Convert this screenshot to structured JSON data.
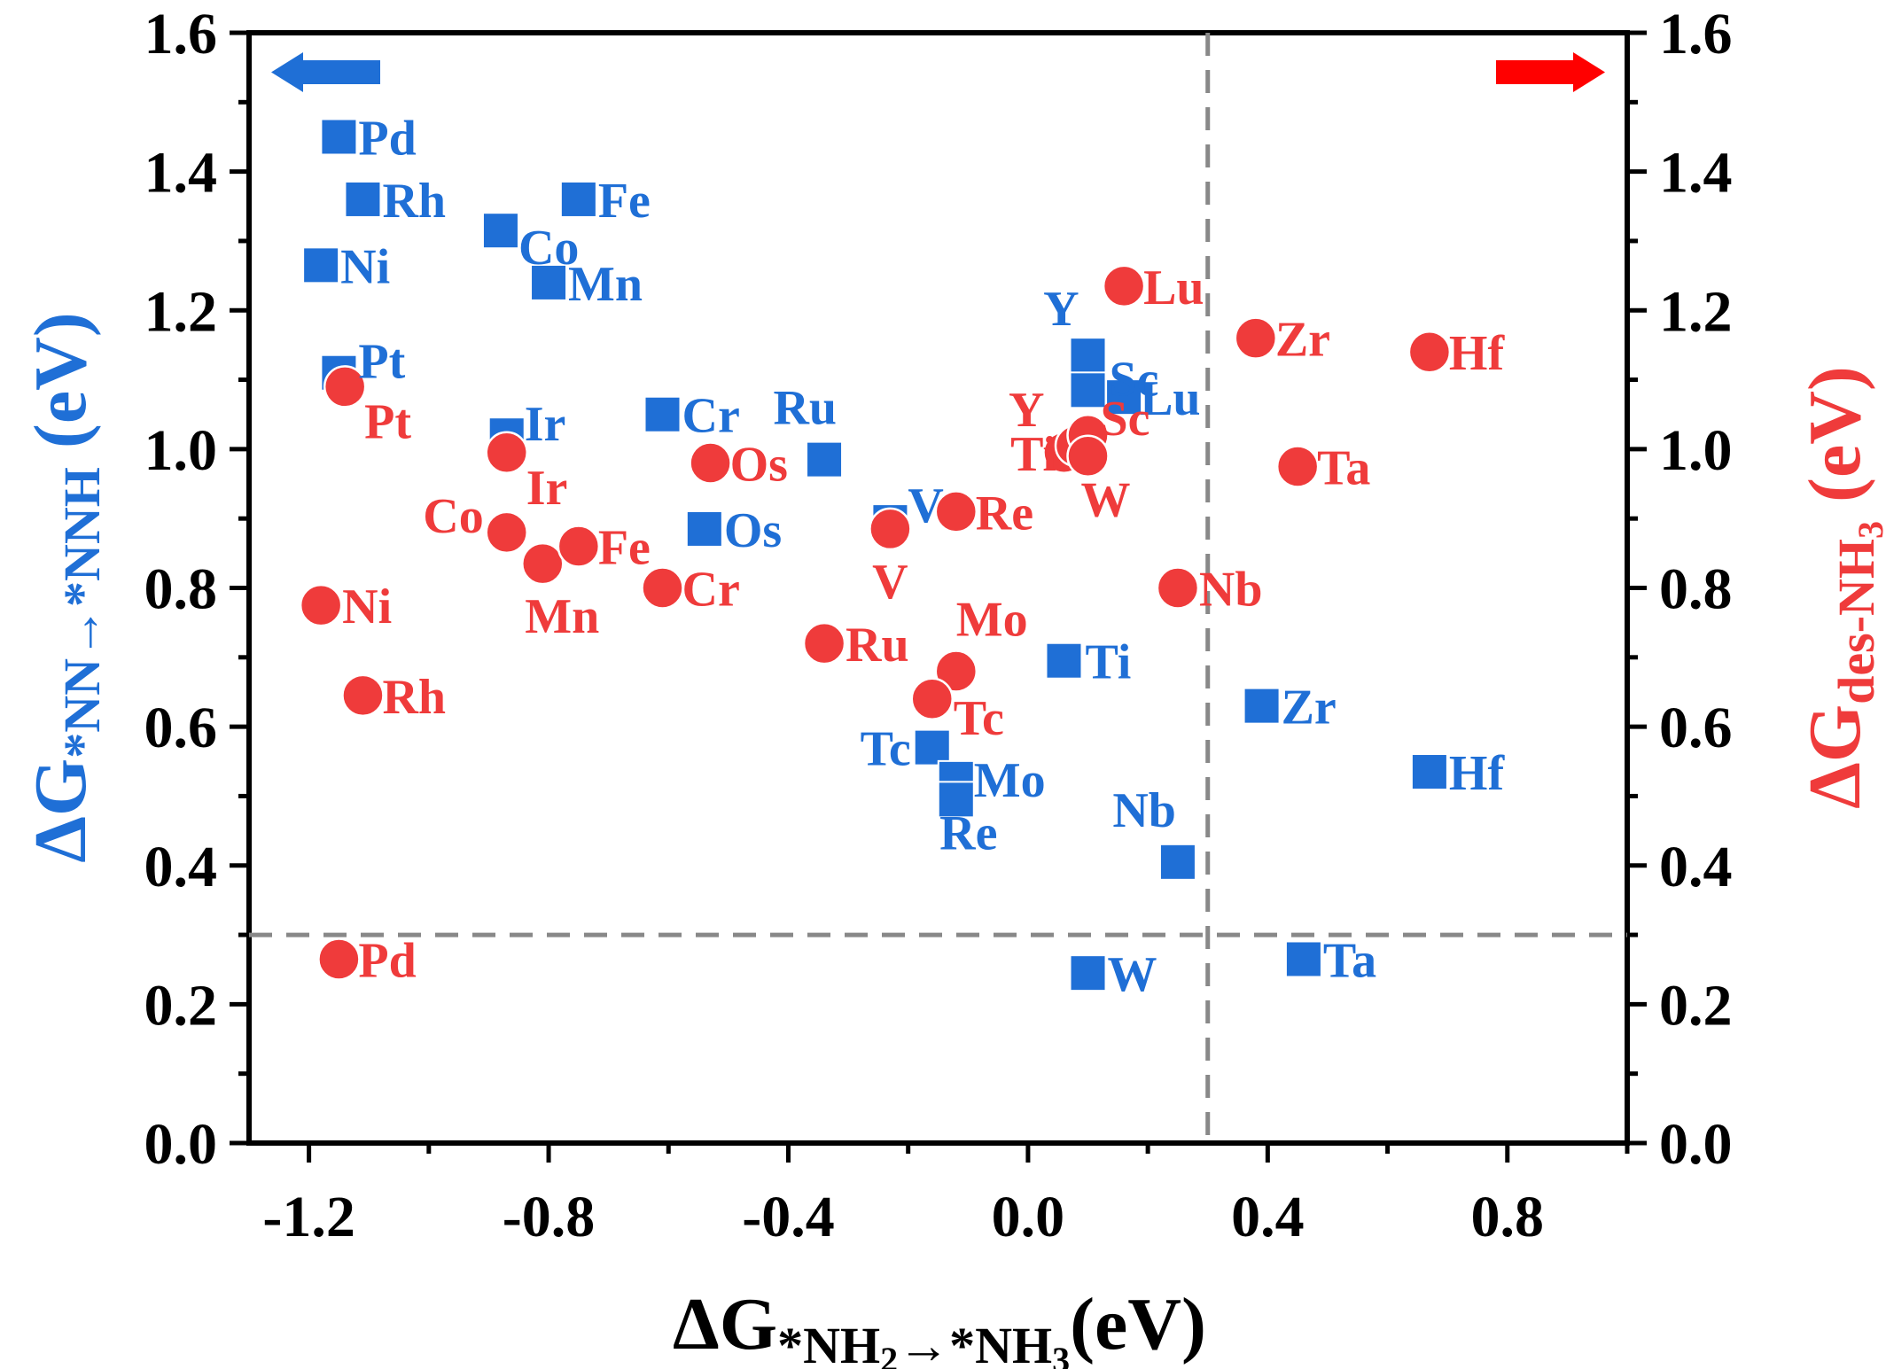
{
  "chart_data": {
    "type": "scatter",
    "xlim": [
      -1.3,
      1.0
    ],
    "ylim": [
      0.0,
      1.6
    ],
    "y2lim": [
      0.0,
      1.6
    ],
    "x_ticks": [
      -1.2,
      -0.8,
      -0.4,
      0.0,
      0.4,
      0.8
    ],
    "x_tick_labels": [
      "-1.2",
      "-0.8",
      "-0.4",
      "0.0",
      "0.4",
      "0.8"
    ],
    "y_ticks": [
      0.0,
      0.2,
      0.4,
      0.6,
      0.8,
      1.0,
      1.2,
      1.4,
      1.6
    ],
    "y_tick_labels": [
      "0.0",
      "0.2",
      "0.4",
      "0.6",
      "0.8",
      "1.0",
      "1.2",
      "1.4",
      "1.6"
    ],
    "y2_tick_labels": [
      "0.0",
      "0.2",
      "0.4",
      "0.6",
      "0.8",
      "1.0",
      "1.2",
      "1.4",
      "1.6"
    ],
    "xlabel": {
      "prefix": "ΔG",
      "sub": "*NH",
      "sub2": "2",
      "sub3": "→*NH",
      "sub4": "3",
      "suffix": "(eV)"
    },
    "ylabel": {
      "prefix": "ΔG",
      "sub": "*NN→*NNH",
      "suffix": " (eV)"
    },
    "y2label": {
      "prefix": "ΔG",
      "sub": "des-NH",
      "sub2": "3",
      "suffix": " (eV)"
    },
    "reference_lines": {
      "x": 0.3,
      "y": 0.3
    },
    "grid": false,
    "colors": {
      "blue": "#1f6fd6",
      "red": "#ef3b3b",
      "ref_line": "#888888",
      "axis": "#000000"
    },
    "series": [
      {
        "axis": "left",
        "marker": "square",
        "color": "#1f6fd6",
        "points": [
          {
            "label": "Pd",
            "x": -1.15,
            "y": 1.45
          },
          {
            "label": "Rh",
            "x": -1.11,
            "y": 1.36
          },
          {
            "label": "Ni",
            "x": -1.18,
            "y": 1.265
          },
          {
            "label": "Pt",
            "x": -1.15,
            "y": 1.11
          },
          {
            "label": "Co",
            "x": -0.88,
            "y": 1.315
          },
          {
            "label": "Fe",
            "x": -0.75,
            "y": 1.36
          },
          {
            "label": "Mn",
            "x": -0.8,
            "y": 1.24
          },
          {
            "label": "Ir",
            "x": -0.87,
            "y": 1.02
          },
          {
            "label": "Cr",
            "x": -0.61,
            "y": 1.05
          },
          {
            "label": "Os",
            "x": -0.54,
            "y": 0.885
          },
          {
            "label": "Ru",
            "x": -0.34,
            "y": 0.985
          },
          {
            "label": "V",
            "x": -0.23,
            "y": 0.895
          },
          {
            "label": "Y",
            "x": 0.1,
            "y": 1.135
          },
          {
            "label": "Sc",
            "x": 0.1,
            "y": 1.085
          },
          {
            "label": "Lu",
            "x": 0.16,
            "y": 1.075
          },
          {
            "label": "Ti",
            "x": 0.06,
            "y": 0.695
          },
          {
            "label": "Tc",
            "x": -0.16,
            "y": 0.57
          },
          {
            "label": "Mo",
            "x": -0.12,
            "y": 0.525
          },
          {
            "label": "Re",
            "x": -0.12,
            "y": 0.495
          },
          {
            "label": "Nb",
            "x": 0.25,
            "y": 0.405
          },
          {
            "label": "W",
            "x": 0.1,
            "y": 0.245
          },
          {
            "label": "Zr",
            "x": 0.39,
            "y": 0.63
          },
          {
            "label": "Hf",
            "x": 0.67,
            "y": 0.535
          },
          {
            "label": "Ta",
            "x": 0.46,
            "y": 0.265
          }
        ]
      },
      {
        "axis": "right",
        "marker": "circle",
        "color": "#ef3b3b",
        "points": [
          {
            "label": "Pt",
            "x": -1.14,
            "y": 1.09
          },
          {
            "label": "Ir",
            "x": -0.87,
            "y": 0.995
          },
          {
            "label": "Co",
            "x": -0.87,
            "y": 0.88
          },
          {
            "label": "Mn",
            "x": -0.81,
            "y": 0.835
          },
          {
            "label": "Fe",
            "x": -0.75,
            "y": 0.86
          },
          {
            "label": "Cr",
            "x": -0.61,
            "y": 0.8
          },
          {
            "label": "Os",
            "x": -0.53,
            "y": 0.98
          },
          {
            "label": "Ni",
            "x": -1.18,
            "y": 0.775
          },
          {
            "label": "Rh",
            "x": -1.11,
            "y": 0.645
          },
          {
            "label": "Pd",
            "x": -1.15,
            "y": 0.265
          },
          {
            "label": "V",
            "x": -0.23,
            "y": 0.885
          },
          {
            "label": "Re",
            "x": -0.12,
            "y": 0.91
          },
          {
            "label": "Ru",
            "x": -0.34,
            "y": 0.72
          },
          {
            "label": "Mo",
            "x": -0.12,
            "y": 0.68
          },
          {
            "label": "Tc",
            "x": -0.16,
            "y": 0.64
          },
          {
            "label": "Y",
            "x": 0.06,
            "y": 0.995
          },
          {
            "label": "Ti",
            "x": 0.08,
            "y": 1.005
          },
          {
            "label": "Sc",
            "x": 0.1,
            "y": 1.02
          },
          {
            "label": "W",
            "x": 0.1,
            "y": 0.99
          },
          {
            "label": "Lu",
            "x": 0.16,
            "y": 1.235
          },
          {
            "label": "Zr",
            "x": 0.38,
            "y": 1.16
          },
          {
            "label": "Hf",
            "x": 0.67,
            "y": 1.14
          },
          {
            "label": "Ta",
            "x": 0.45,
            "y": 0.975
          },
          {
            "label": "Nb",
            "x": 0.25,
            "y": 0.8
          }
        ]
      }
    ]
  }
}
